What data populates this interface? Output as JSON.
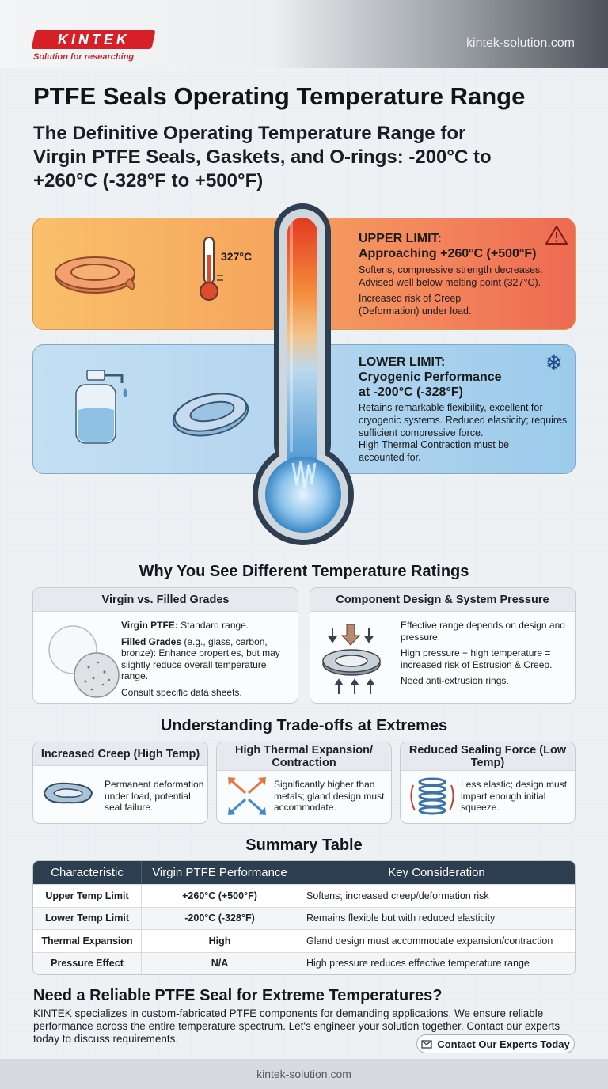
{
  "brand": {
    "logo_text": "KINTEK",
    "tagline": "Solution for researching",
    "site": "kintek-solution.com"
  },
  "title": "PTFE Seals Operating Temperature Range",
  "subtitle": "The Definitive Operating Temperature Range for Virgin PTFE Seals, Gaskets, and O-rings: -200°C to +260°C (-328°F to +500°F)",
  "upper": {
    "thermo_label": "327°C",
    "heading": "UPPER LIMIT:",
    "heading2": "Approaching +260°C (+500°F)",
    "text1": "Softens, compressive strength decreases. Advised well below melting point (327°C).",
    "text2": "Increased risk of Creep (Deformation) under load.",
    "icon": "warning-icon"
  },
  "lower": {
    "heading": "LOWER LIMIT:",
    "heading2": "Cryogenic Performance",
    "heading3": "at -200°C (-328°F)",
    "text1": "Retains remarkable flexibility, excellent for cryogenic systems. Reduced elasticity; requires sufficient compressive force.",
    "text2": "High Thermal Contraction must be accounted for.",
    "icon": "snowflake-icon"
  },
  "why": {
    "heading": "Why You See Different Temperature Ratings",
    "card1": {
      "title": "Virgin vs. Filled Grades",
      "b1": "Virgin PTFE:",
      "t1": " Standard range.",
      "b2": "Filled Grades",
      "t2": " (e.g., glass, carbon, bronze): Enhance properties, but may slightly reduce overall temperature range.",
      "t3": "Consult specific data sheets."
    },
    "card2": {
      "title": "Component Design & System Pressure",
      "t1": "Effective range depends on design and pressure.",
      "t2": "High pressure + high temperature = increased risk of Estrusion & Creep.",
      "t3": "Need anti-extrusion rings."
    }
  },
  "tradeoffs": {
    "heading": "Understanding Trade-offs at Extremes",
    "c1": {
      "title": "Increased Creep (High Temp)",
      "text": "Permanent deformation under load, potential seal failure."
    },
    "c2": {
      "title": "High Thermal Expansion/ Contraction",
      "text": "Significantly higher than metals; gland design must accommodate."
    },
    "c3": {
      "title": "Reduced Sealing Force (Low Temp)",
      "text": "Less elastic; design must impart enough initial squeeze."
    }
  },
  "summary": {
    "heading": "Summary Table",
    "columns": [
      "Characteristic",
      "Virgin PTFE Performance",
      "Key Consideration"
    ],
    "rows": [
      [
        "Upper Temp Limit",
        "+260°C (+500°F)",
        "Softens; increased creep/deformation risk"
      ],
      [
        "Lower Temp Limit",
        "-200°C (-328°F)",
        "Remains flexible but with reduced elasticity"
      ],
      [
        "Thermal Expansion",
        "High",
        "Gland design must accommodate expansion/contraction"
      ],
      [
        "Pressure Effect",
        "N/A",
        "High pressure reduces effective temperature range"
      ]
    ]
  },
  "cta": {
    "title": "Need a Reliable PTFE Seal for Extreme Temperatures?",
    "text": "KINTEK specializes in custom-fabricated PTFE components for demanding applications. We ensure reliable performance across the entire temperature spectrum. Let's engineer your solution together. Contact our experts today to discuss requirements.",
    "button": "Contact Our Experts Today",
    "button_icon": "mail-icon"
  },
  "footer": "kintek-solution.com"
}
